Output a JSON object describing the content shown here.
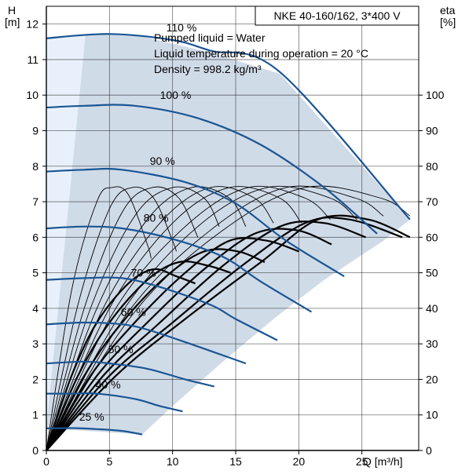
{
  "chart_data": {
    "type": "line",
    "title": "NKE 40-160/162, 3*400 V",
    "info_lines": [
      "Pumped liquid = Water",
      "Liquid temperature during operation = 20 °C",
      "Density = 998.2 kg/m³"
    ],
    "left_axis": {
      "label_top": "H",
      "label_unit": "[m]",
      "ylim": [
        0,
        12.5
      ],
      "ticks": [
        0,
        1,
        2,
        3,
        4,
        5,
        6,
        7,
        8,
        9,
        10,
        11,
        12
      ]
    },
    "right_axis": {
      "label_top": "eta",
      "label_unit": "[%]",
      "ylim": [
        0,
        125
      ],
      "ticks": [
        0,
        10,
        20,
        30,
        40,
        50,
        60,
        70,
        80,
        90,
        100
      ]
    },
    "x_axis": {
      "label": "Q [m³/h]",
      "xlim": [
        0,
        29.5
      ],
      "ticks": [
        0,
        5,
        10,
        15,
        20,
        25
      ]
    },
    "grid": true,
    "operating_region": {
      "color": "#d0dbe8",
      "light_color": "#e8f1fb",
      "outline": [
        [
          3.1,
          11.7
        ],
        [
          7,
          11.7
        ],
        [
          13,
          11.2
        ],
        [
          18.5,
          10.6
        ],
        [
          28.8,
          6.5
        ],
        [
          26.7,
          5.9
        ],
        [
          22,
          4.8
        ],
        [
          18,
          3.7
        ],
        [
          14,
          2.5
        ],
        [
          10,
          1.25
        ],
        [
          7.6,
          0.45
        ],
        [
          0,
          0.62
        ]
      ]
    },
    "speed_curves": {
      "color": "#1a5594",
      "series": [
        {
          "name": "110 %",
          "label_pos": [
            9.5,
            11.9
          ],
          "x": [
            0,
            5,
            10,
            13,
            18.5,
            28.8
          ],
          "y": [
            11.6,
            11.72,
            11.55,
            11.25,
            10.65,
            6.5
          ]
        },
        {
          "name": "100 %",
          "label_pos": [
            9.0,
            10.0
          ],
          "x": [
            0,
            3,
            7,
            12,
            17,
            22,
            26.2
          ],
          "y": [
            9.65,
            9.7,
            9.7,
            9.35,
            8.6,
            7.4,
            6.1
          ]
        },
        {
          "name": "90 %",
          "label_pos": [
            8.2,
            8.15
          ],
          "x": [
            0,
            3,
            6,
            11,
            15,
            19,
            23.6
          ],
          "y": [
            7.85,
            7.9,
            7.9,
            7.55,
            6.95,
            5.9,
            4.9
          ]
        },
        {
          "name": "80 %",
          "label_pos": [
            7.7,
            6.55
          ],
          "x": [
            0,
            3,
            6,
            10,
            14,
            17,
            21
          ],
          "y": [
            6.25,
            6.3,
            6.25,
            5.95,
            5.45,
            4.75,
            3.9
          ]
        },
        {
          "name": "70 %",
          "label_pos": [
            6.7,
            5.0
          ],
          "x": [
            0,
            3,
            6,
            9,
            13,
            15,
            18.3
          ],
          "y": [
            4.8,
            4.85,
            4.85,
            4.6,
            4.1,
            3.7,
            3.1
          ]
        },
        {
          "name": "60 %",
          "label_pos": [
            5.9,
            3.9
          ],
          "x": [
            0,
            3,
            6,
            8,
            11,
            13,
            15.8
          ],
          "y": [
            3.55,
            3.6,
            3.55,
            3.4,
            3.05,
            2.8,
            2.45
          ]
        },
        {
          "name": "50 %",
          "label_pos": [
            4.9,
            2.85
          ],
          "x": [
            0,
            3,
            5,
            8,
            11,
            13.3
          ],
          "y": [
            2.45,
            2.5,
            2.45,
            2.3,
            2.0,
            1.8
          ]
        },
        {
          "name": "40 %",
          "label_pos": [
            3.9,
            1.85
          ],
          "x": [
            0,
            2,
            4,
            7,
            9,
            10.8
          ],
          "y": [
            1.6,
            1.6,
            1.6,
            1.45,
            1.25,
            1.1
          ]
        },
        {
          "name": "25 %",
          "label_pos": [
            2.6,
            0.95
          ],
          "x": [
            0,
            2,
            4,
            6,
            7.6
          ],
          "y": [
            0.62,
            0.63,
            0.6,
            0.55,
            0.45
          ]
        }
      ]
    },
    "efficiency_curves_thin": [
      {
        "x": [
          0,
          2,
          4,
          5.2,
          6.5,
          8,
          8.3
        ],
        "y": [
          0,
          45,
          70,
          74,
          72,
          58,
          54
        ]
      },
      {
        "x": [
          0,
          2.5,
          5,
          6.8,
          8.5,
          10,
          10.3
        ],
        "y": [
          0,
          41,
          68,
          74,
          71,
          59,
          56
        ]
      },
      {
        "x": [
          0,
          3,
          6,
          8.4,
          10.5,
          12
        ],
        "y": [
          0,
          40,
          67,
          74,
          71,
          60
        ]
      },
      {
        "x": [
          0,
          3.5,
          7,
          10,
          12.5,
          13.7
        ],
        "y": [
          0,
          40,
          66,
          74,
          71,
          63
        ]
      },
      {
        "x": [
          0,
          4,
          8,
          11.5,
          14.5,
          15.8
        ],
        "y": [
          0,
          40,
          65,
          74,
          71,
          63
        ]
      },
      {
        "x": [
          0,
          4.5,
          9,
          13,
          16.5,
          18
        ],
        "y": [
          0,
          40,
          64,
          74,
          71,
          64
        ]
      },
      {
        "x": [
          0,
          5,
          10,
          14.5,
          18.5,
          20.2
        ],
        "y": [
          0,
          40,
          64,
          74,
          71,
          64
        ]
      },
      {
        "x": [
          0,
          5.5,
          11,
          16,
          20.5,
          22.5
        ],
        "y": [
          0,
          40,
          63,
          74,
          71,
          65
        ]
      },
      {
        "x": [
          0,
          6,
          12,
          17.5,
          22.5,
          24.6
        ],
        "y": [
          0,
          39,
          63,
          74,
          71,
          65
        ]
      },
      {
        "x": [
          0,
          6.5,
          13,
          19,
          24.5,
          26.7
        ],
        "y": [
          0,
          39,
          62,
          74,
          71,
          66
        ]
      },
      {
        "x": [
          0,
          7,
          14,
          20.5,
          26.5,
          28.8
        ],
        "y": [
          0,
          39,
          62,
          74,
          71,
          66
        ]
      }
    ],
    "efficiency_curves_thick": [
      {
        "x": [
          0,
          2,
          4,
          6.5,
          8.5,
          10.3,
          11.8
        ],
        "y": [
          0,
          21,
          36,
          47,
          51,
          49,
          47
        ]
      },
      {
        "x": [
          0,
          2.5,
          5,
          8,
          10.5,
          12.8,
          14.6
        ],
        "y": [
          0,
          21,
          36,
          48,
          53,
          52,
          50
        ]
      },
      {
        "x": [
          0,
          3,
          6,
          9.5,
          12.5,
          15.2,
          17.3
        ],
        "y": [
          0,
          21,
          36,
          49,
          56,
          56,
          53
        ]
      },
      {
        "x": [
          0,
          3.5,
          7,
          11,
          14.5,
          17.5,
          20
        ],
        "y": [
          0,
          21,
          36,
          50,
          59,
          59,
          56
        ]
      },
      {
        "x": [
          0,
          4,
          8,
          12.5,
          16.5,
          19.8,
          22.6
        ],
        "y": [
          0,
          21,
          36,
          51,
          61,
          62,
          58
        ]
      },
      {
        "x": [
          0,
          4.5,
          9,
          14,
          18.5,
          22,
          25.3
        ],
        "y": [
          0,
          21,
          36,
          52,
          63,
          64,
          60
        ]
      },
      {
        "x": [
          0,
          5,
          10,
          15.5,
          20.5,
          24,
          28.2
        ],
        "y": [
          0,
          21,
          36,
          52,
          64,
          65,
          60
        ]
      },
      {
        "x": [
          0,
          5.5,
          11,
          17,
          21.5,
          25.5,
          28.8
        ],
        "y": [
          0,
          21,
          37,
          53,
          65,
          65,
          60
        ]
      }
    ]
  }
}
